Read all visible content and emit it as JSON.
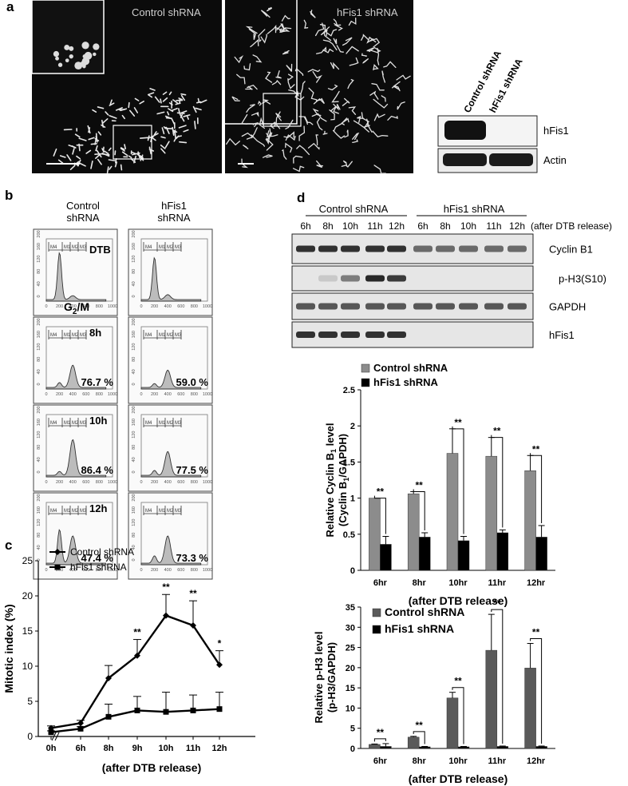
{
  "panel_a": {
    "letter": "a",
    "micro_labels": [
      "Control shRNA",
      "hFis1 shRNA"
    ],
    "blot_cols": [
      "Control shRNA",
      "hFis1 shRNA"
    ],
    "blot_rows": [
      "hFis1",
      "Actin"
    ]
  },
  "panel_b": {
    "letter": "b",
    "col_headers": [
      [
        "Control",
        "shRNA"
      ],
      [
        "hFis1",
        "shRNA"
      ]
    ],
    "row_labels": [
      "DTB",
      "8h",
      "10h",
      "12h"
    ],
    "g2m_label": "G",
    "g2m_sub": "2",
    "g2m_suffix": "/M",
    "percents": [
      [
        "",
        ""
      ],
      [
        "76.7 %",
        "59.0 %"
      ],
      [
        "86.4 %",
        "77.5 %"
      ],
      [
        "47.4 %",
        "73.3 %"
      ]
    ],
    "y_ticks": [
      "0",
      "40",
      "80",
      "120",
      "160",
      "200"
    ],
    "x_ticks": [
      "0",
      "200",
      "400",
      "600",
      "800",
      "1000"
    ],
    "gate_labels": [
      "M4",
      "M1",
      "M2",
      "M3"
    ]
  },
  "panel_c": {
    "letter": "c",
    "chart_data": {
      "type": "line",
      "ylabel": "Mitotic index (%)",
      "xlabel": "(after DTB release)",
      "categories": [
        "0h",
        "6h",
        "8h",
        "9h",
        "10h",
        "11h",
        "12h"
      ],
      "ylim": [
        0,
        25
      ],
      "y_ticks": [
        "0",
        "5",
        "10",
        "15",
        "20",
        "25"
      ],
      "legend_position": "top-left",
      "series": [
        {
          "name": "Control shRNA",
          "values": [
            1.2,
            1.9,
            8.3,
            11.5,
            17.2,
            15.8,
            10.2
          ],
          "errors": [
            0.3,
            0.4,
            1.8,
            2.3,
            3.0,
            3.5,
            2.0
          ]
        },
        {
          "name": "hFis1 shRNA",
          "values": [
            0.6,
            1.1,
            2.8,
            3.7,
            3.5,
            3.7,
            3.9
          ],
          "errors": [
            0.2,
            0.3,
            1.8,
            2.0,
            2.8,
            2.2,
            2.4
          ]
        }
      ],
      "significance": [
        "",
        "",
        "",
        "**",
        "**",
        "**",
        "*"
      ]
    }
  },
  "panel_d": {
    "letter": "d",
    "group_labels": [
      "Control shRNA",
      "hFis1 shRNA"
    ],
    "lane_labels": [
      "6h",
      "8h",
      "10h",
      "11h",
      "12h",
      "6h",
      "8h",
      "10h",
      "11h",
      "12h"
    ],
    "release_label": "(after DTB release)",
    "blot_rows": [
      "Cyclin B1",
      "p-H3(S10)",
      "GAPDH",
      "hFis1"
    ],
    "chart_top": {
      "type": "bar",
      "ylabel_line1": "Relative Cyclin B",
      "ylabel_sub": "1",
      "ylabel_line1_end": " level",
      "ylabel_line2": "(Cyclin B",
      "ylabel_line2_sub": "1",
      "ylabel_line2_end": "/GAPDH)",
      "xlabel": "(after DTB release)",
      "categories": [
        "6hr",
        "8hr",
        "10hr",
        "11hr",
        "12hr"
      ],
      "ylim": [
        0,
        2.5
      ],
      "y_ticks": [
        "0",
        "0.5",
        "1",
        "1.5",
        "2",
        "2.5"
      ],
      "legend_position": "top",
      "series": [
        {
          "name": "Control shRNA",
          "color": "#8c8c8c",
          "values": [
            1.0,
            1.06,
            1.62,
            1.58,
            1.38
          ],
          "errors": [
            0,
            0.03,
            0.34,
            0.26,
            0.21
          ]
        },
        {
          "name": "hFis1 shRNA",
          "color": "#000000",
          "values": [
            0.36,
            0.46,
            0.41,
            0.52,
            0.46
          ],
          "errors": [
            0.11,
            0.06,
            0.06,
            0.04,
            0.16
          ]
        }
      ],
      "significance": [
        "**",
        "**",
        "**",
        "**",
        "**"
      ]
    },
    "chart_bottom": {
      "type": "bar",
      "ylabel_line1": "Relative p-H3 level",
      "ylabel_line2": "(p-H3/GAPDH)",
      "xlabel": "(after DTB release)",
      "categories": [
        "6hr",
        "8hr",
        "10hr",
        "11hr",
        "12hr"
      ],
      "ylim": [
        0,
        35
      ],
      "y_ticks": [
        "0",
        "5",
        "10",
        "15",
        "20",
        "25",
        "30",
        "35"
      ],
      "legend_position": "top-left",
      "series": [
        {
          "name": "Control shRNA",
          "color": "#5a5a5a",
          "values": [
            1.0,
            2.8,
            12.5,
            24.3,
            19.9
          ],
          "errors": [
            0.1,
            0.2,
            1.4,
            8.9,
            6.1
          ]
        },
        {
          "name": "hFis1 shRNA",
          "color": "#000000",
          "values": [
            0.5,
            0.4,
            0.4,
            0.5,
            0.5
          ],
          "errors": [
            0.7,
            0.1,
            0.1,
            0.1,
            0.1
          ]
        }
      ],
      "significance": [
        "**",
        "**",
        "**",
        "**",
        "**"
      ]
    }
  }
}
